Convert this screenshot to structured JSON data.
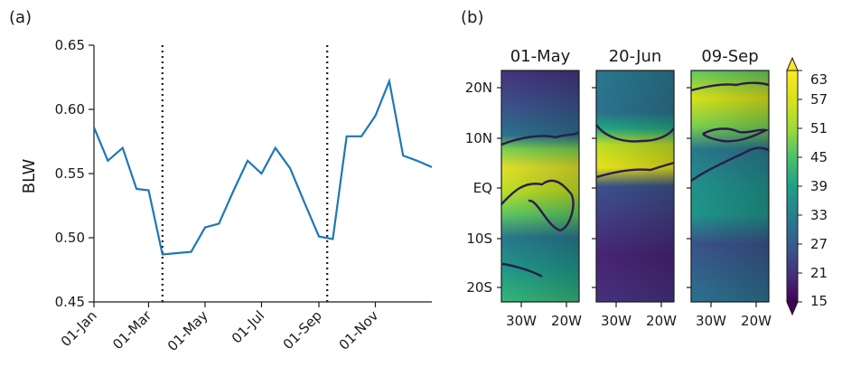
{
  "chart_data": [
    {
      "panel_label": "(a)",
      "type": "line",
      "title": "",
      "ylabel": "BLW",
      "xlabel": "",
      "ylim": [
        0.45,
        0.65
      ],
      "yticks": [
        "0.45",
        "0.50",
        "0.55",
        "0.60",
        "0.65"
      ],
      "xticks": [
        "01-Jan",
        "01-Mar",
        "01-May",
        "01-Jul",
        "01-Sep",
        "01-Nov"
      ],
      "xtick_days": [
        1,
        60,
        121,
        182,
        244,
        305
      ],
      "xlim_days": [
        1,
        366
      ],
      "vlines_days": [
        75,
        253
      ],
      "line_color": "#1f77b4",
      "series": [
        {
          "x": [
            1,
            16,
            32,
            47,
            60,
            75,
            91,
            106,
            121,
            136,
            152,
            167,
            182,
            197,
            213,
            228,
            244,
            259,
            274,
            290,
            305,
            320,
            335,
            350,
            366
          ],
          "values": [
            0.586,
            0.56,
            0.57,
            0.538,
            0.537,
            0.487,
            0.488,
            0.489,
            0.508,
            0.511,
            0.537,
            0.56,
            0.55,
            0.57,
            0.554,
            0.528,
            0.501,
            0.499,
            0.579,
            0.579,
            0.595,
            0.622,
            0.564,
            0.56,
            0.555
          ]
        }
      ]
    },
    {
      "panel_label": "(b)",
      "type": "heatmap",
      "colormap": "viridis",
      "panels": [
        {
          "title": "01-May",
          "xticks": [
            "30W",
            "20W"
          ]
        },
        {
          "title": "20-Jun",
          "xticks": [
            "30W",
            "20W"
          ]
        },
        {
          "title": "09-Sep",
          "xticks": [
            "30W",
            "20W"
          ]
        }
      ],
      "yticks": [
        "20N",
        "10N",
        "EQ",
        "10S",
        "20S"
      ],
      "colorbar_ticks": [
        "63",
        "57",
        "51",
        "45",
        "39",
        "33",
        "27",
        "21",
        "15"
      ],
      "clim": [
        15,
        63
      ]
    }
  ]
}
